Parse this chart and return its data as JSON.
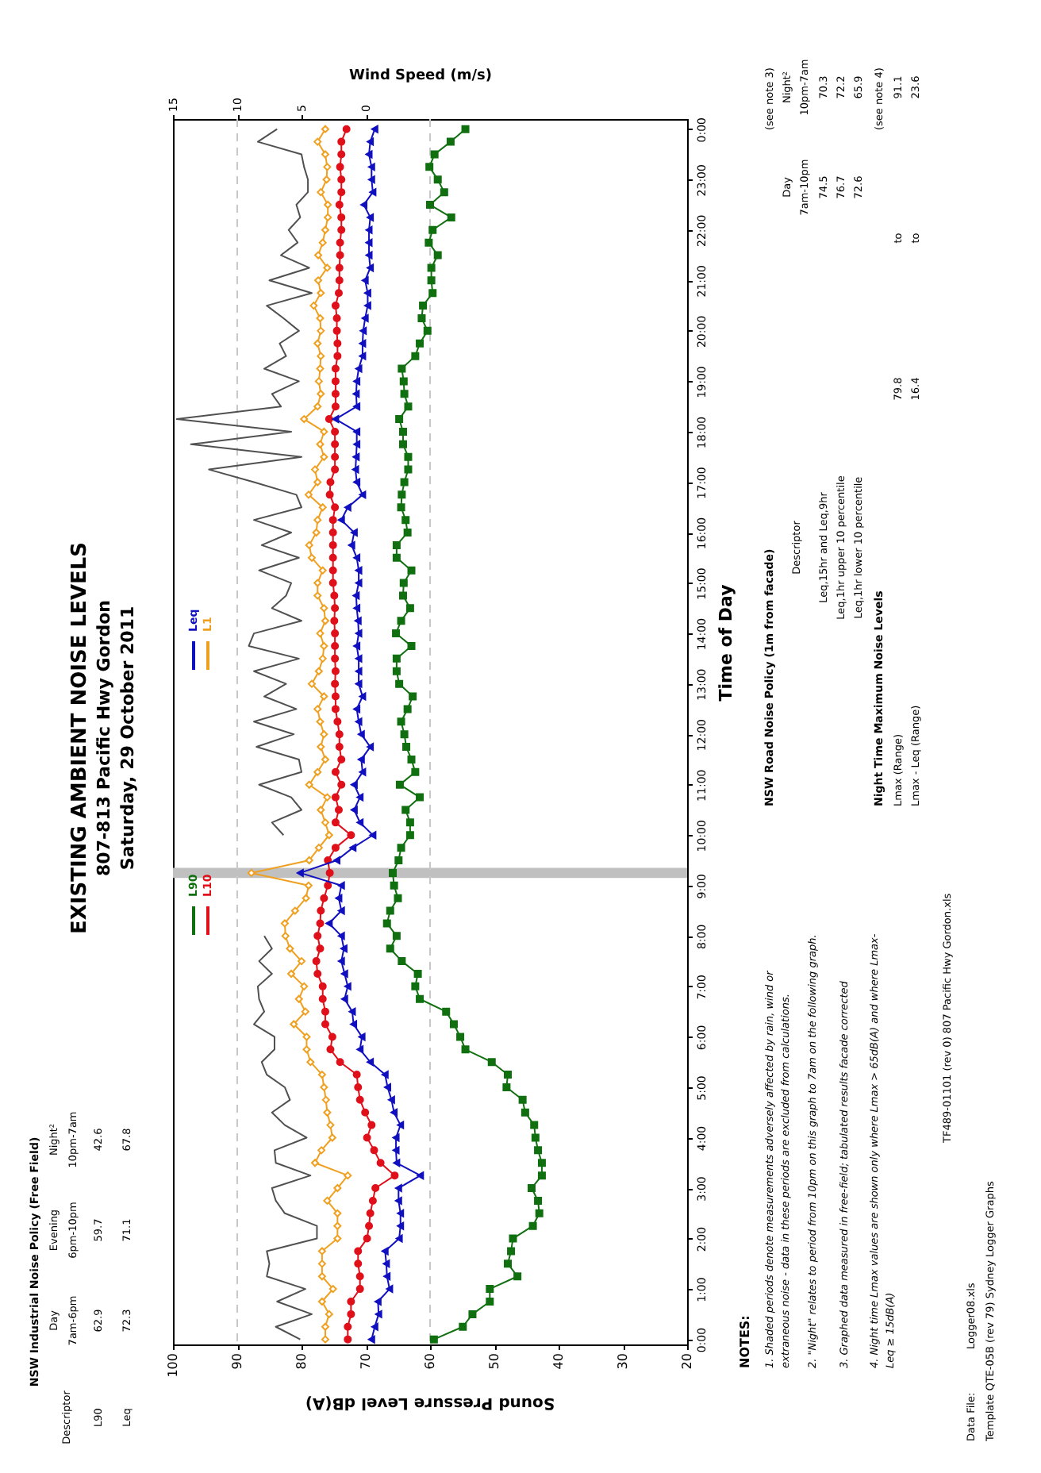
{
  "chart_data": {
    "type": "line",
    "title": "EXISTING AMBIENT NOISE LEVELS",
    "subtitle": "807-813 Pacific Hwy Gordon",
    "orientation": "horizontal",
    "ylabel": "Time of Day",
    "xlabel": "Sound Pressure Level dB(A)",
    "x2label": "Wind Speed (m/s)",
    "x": [
      0,
      0.25,
      0.5,
      0.75,
      1,
      1.25,
      1.5,
      1.75,
      2,
      2.25,
      2.5,
      2.75,
      3,
      3.25,
      3.5,
      3.75,
      4,
      4.25,
      4.5,
      4.75,
      5,
      5.25,
      5.5,
      5.75,
      6,
      6.25,
      6.5,
      6.75,
      7,
      7.25,
      7.5,
      7.75,
      8,
      8.25,
      8.5,
      8.75,
      9,
      9.25,
      9.5,
      9.75,
      10,
      10.25,
      10.5,
      10.75,
      11,
      11.25,
      11.5,
      11.75,
      12,
      12.25,
      12.5,
      12.75,
      13,
      13.25,
      13.5,
      13.75,
      14,
      14.25,
      14.5,
      14.75,
      15,
      15.25,
      15.5,
      15.75,
      16,
      16.25,
      16.5,
      16.75,
      17,
      17.25,
      17.5,
      17.75,
      18,
      18.25,
      18.5,
      18.75,
      19,
      19.25,
      19.5,
      19.75,
      20,
      20.25,
      20.5,
      20.75,
      21,
      21.25,
      21.5,
      21.75,
      22,
      22.25,
      22.5,
      22.75,
      23,
      23.25,
      23.5,
      23.75,
      24
    ],
    "ylim": [
      -0.1,
      24.2
    ],
    "yticks": [
      {
        "value": 0,
        "label": "0:00"
      },
      {
        "value": 1,
        "label": "1:00"
      },
      {
        "value": 2,
        "label": "2:00"
      },
      {
        "value": 3,
        "label": "3:00"
      },
      {
        "value": 4,
        "label": "4:00"
      },
      {
        "value": 5,
        "label": "5:00"
      },
      {
        "value": 6,
        "label": "6:00"
      },
      {
        "value": 7,
        "label": "7:00"
      },
      {
        "value": 8,
        "label": "8:00"
      },
      {
        "value": 9,
        "label": "9:00"
      },
      {
        "value": 10,
        "label": "10:00"
      },
      {
        "value": 11,
        "label": "11:00"
      },
      {
        "value": 12,
        "label": "12:00"
      },
      {
        "value": 13,
        "label": "13:00"
      },
      {
        "value": 14,
        "label": "14:00"
      },
      {
        "value": 15,
        "label": "15:00"
      },
      {
        "value": 16,
        "label": "16:00"
      },
      {
        "value": 17,
        "label": "17:00"
      },
      {
        "value": 18,
        "label": "18:00"
      },
      {
        "value": 19,
        "label": "19:00"
      },
      {
        "value": 20,
        "label": "20:00"
      },
      {
        "value": 21,
        "label": "21:00"
      },
      {
        "value": 22,
        "label": "22:00"
      },
      {
        "value": 23,
        "label": "23:00"
      },
      {
        "value": 24,
        "label": "0:00"
      }
    ],
    "xlim": [
      100,
      20
    ],
    "xticks": [
      100,
      90,
      80,
      70,
      60,
      50,
      40,
      30,
      20
    ],
    "x2lim": [
      15,
      -25
    ],
    "x2ticks": [
      15,
      10,
      5,
      0
    ],
    "series": [
      {
        "name": "L1",
        "color": "#f0a020",
        "marker": "diamond",
        "values": [
          76.3,
          76.3,
          75.7,
          76.8,
          75.1,
          76.8,
          76.8,
          76.8,
          74.4,
          74.4,
          74.4,
          76.0,
          74.4,
          72.8,
          77.9,
          76.9,
          75.2,
          75.5,
          76.0,
          76.2,
          76.5,
          76.8,
          78.6,
          79.2,
          79.2,
          81.2,
          79.4,
          80.4,
          79.6,
          81.6,
          80.0,
          81.8,
          82.5,
          82.6,
          81.0,
          79.3,
          78.9,
          87.8,
          78.8,
          77.3,
          75.7,
          76.3,
          77.0,
          76.0,
          78.8,
          77.5,
          76.3,
          77.0,
          76.5,
          77.1,
          77.5,
          76.5,
          78.4,
          77.3,
          76.7,
          76.5,
          77.1,
          76.3,
          76.5,
          77.5,
          77.5,
          76.7,
          78.4,
          78.8,
          77.7,
          77.5,
          76.7,
          78.9,
          77.5,
          77.9,
          76.5,
          77.1,
          76.5,
          79.6,
          77.5,
          77.0,
          77.3,
          77.1,
          77.0,
          77.5,
          77.0,
          77.1,
          78.1,
          77.0,
          77.4,
          76.0,
          77.4,
          76.7,
          76.3,
          75.9,
          75.9,
          77.0,
          76.1,
          76.0,
          76.3,
          77.5,
          76.3
        ]
      },
      {
        "name": "L10",
        "color": "#e0101a",
        "marker": "circle",
        "values": [
          72.8,
          72.8,
          72.3,
          72.3,
          70.9,
          70.9,
          71.2,
          71.2,
          69.8,
          69.5,
          69.3,
          68.9,
          68.5,
          65.5,
          67.7,
          68.7,
          69.8,
          69.1,
          70.1,
          70.9,
          71.2,
          71.4,
          74.0,
          75.5,
          75.2,
          76.3,
          76.3,
          76.7,
          76.7,
          77.5,
          77.7,
          77.1,
          77.5,
          77.1,
          77.0,
          76.5,
          75.9,
          75.6,
          75.9,
          74.7,
          72.3,
          74.7,
          74.2,
          74.7,
          73.8,
          74.7,
          73.8,
          74.1,
          74.1,
          74.4,
          74.7,
          74.7,
          74.8,
          74.7,
          74.8,
          74.8,
          74.8,
          74.9,
          74.8,
          74.9,
          75.1,
          75.1,
          75.1,
          75.1,
          75.1,
          75.1,
          74.8,
          75.6,
          75.5,
          74.8,
          74.8,
          74.8,
          74.8,
          75.7,
          74.7,
          74.7,
          74.7,
          74.7,
          74.4,
          74.4,
          74.5,
          74.5,
          74.7,
          74.2,
          74.1,
          74.1,
          74.0,
          74.0,
          73.8,
          73.8,
          74.1,
          73.8,
          73.8,
          74.0,
          73.8,
          73.8,
          73.0
        ]
      },
      {
        "name": "Leq",
        "color": "#1010c0",
        "marker": "triangle",
        "values": [
          69.1,
          68.6,
          68.0,
          68.1,
          66.3,
          66.7,
          66.8,
          67.0,
          64.8,
          64.6,
          64.6,
          64.9,
          64.9,
          61.5,
          65.2,
          65.3,
          65.3,
          64.6,
          65.6,
          66.0,
          66.6,
          67.0,
          69.3,
          70.9,
          70.6,
          71.9,
          72.1,
          73.3,
          72.8,
          73.3,
          73.8,
          73.4,
          73.8,
          75.7,
          73.8,
          74.2,
          73.8,
          80.2,
          74.5,
          72.0,
          68.9,
          70.9,
          71.8,
          70.9,
          71.8,
          70.5,
          70.7,
          69.3,
          70.7,
          71.1,
          71.4,
          70.5,
          71.1,
          71.1,
          71.1,
          71.4,
          71.1,
          71.2,
          71.4,
          71.5,
          71.1,
          71.1,
          71.4,
          72.2,
          71.8,
          73.8,
          72.8,
          70.5,
          71.4,
          71.6,
          71.5,
          71.4,
          71.4,
          74.7,
          71.4,
          71.5,
          71.4,
          71.1,
          70.5,
          70.5,
          70.4,
          70.1,
          69.7,
          69.7,
          70.1,
          69.3,
          69.5,
          69.5,
          69.5,
          69.3,
          70.3,
          68.9,
          69.1,
          69.1,
          69.5,
          69.3,
          68.6
        ]
      },
      {
        "name": "L90",
        "color": "#107010",
        "marker": "square",
        "values": [
          59.4,
          54.9,
          53.4,
          50.7,
          50.7,
          46.4,
          47.9,
          47.4,
          47.1,
          44.0,
          43.0,
          43.2,
          44.2,
          42.6,
          42.6,
          43.2,
          43.6,
          43.8,
          45.2,
          45.6,
          48.1,
          47.9,
          50.4,
          54.5,
          55.3,
          56.3,
          57.5,
          61.6,
          62.3,
          61.9,
          64.4,
          66.2,
          65.2,
          66.7,
          66.2,
          65.0,
          65.6,
          65.8,
          64.9,
          64.5,
          63.1,
          63.1,
          63.8,
          61.6,
          64.7,
          62.3,
          62.9,
          63.7,
          64.0,
          64.5,
          63.5,
          62.7,
          64.8,
          65.2,
          65.2,
          62.9,
          65.3,
          64.5,
          63.1,
          64.2,
          64.1,
          62.9,
          65.2,
          65.2,
          63.5,
          63.8,
          64.5,
          64.4,
          64.0,
          63.4,
          63.4,
          64.2,
          64.2,
          64.8,
          63.4,
          64.0,
          64.1,
          64.4,
          62.3,
          61.6,
          60.4,
          61.3,
          61.1,
          59.6,
          59.8,
          59.8,
          58.8,
          60.2,
          59.6,
          56.7,
          60.0,
          57.8,
          58.8,
          60.1,
          59.3,
          56.8,
          54.5
        ]
      },
      {
        "color": "#505050",
        "marker": "none",
        "axis": "x2",
        "values": [
          5.1,
          7.0,
          4.2,
          6.9,
          4.7,
          7.7,
          7.5,
          7.7,
          3.8,
          3.8,
          6.3,
          7.0,
          7.3,
          4.3,
          7.0,
          7.1,
          4.6,
          6.3,
          7.3,
          5.9,
          6.3,
          7.7,
          8.1,
          7.1,
          7.1,
          8.7,
          7.9,
          8.3,
          8.4,
          7.3,
          8.3,
          7.3,
          7.9,
          null,
          null,
          null,
          null,
          null,
          null,
          null,
          6.4,
          7.3,
          5.0,
          5.8,
          8.3,
          5.0,
          5.2,
          8.5,
          5.6,
          8.7,
          5.4,
          7.9,
          6.2,
          8.7,
          5.2,
          9.1,
          8.7,
          5.0,
          7.3,
          6.2,
          5.8,
          8.3,
          5.2,
          8.1,
          5.8,
          8.7,
          5.0,
          5.4,
          8.7,
          12.2,
          5.0,
          13.6,
          5.8,
          14.7,
          6.6,
          7.3,
          5.2,
          7.9,
          6.2,
          6.7,
          5.2,
          6.4,
          7.7,
          4.2,
          7.5,
          4.4,
          6.6,
          5.3,
          6.0,
          5.1,
          5.4,
          4.5,
          4.5,
          4.8,
          5.0,
          8.4,
          6.9
        ]
      }
    ],
    "bands": [
      {
        "axis": "y",
        "from": 9.15,
        "to": 9.35,
        "color": "#c0c0c0"
      }
    ],
    "ref_lines": [
      {
        "axis": "x",
        "value": 90,
        "color": "#c8c8c8",
        "line_style": "dashed"
      },
      {
        "axis": "x",
        "value": 60,
        "color": "#c8c8c8",
        "line_style": "dashed"
      }
    ],
    "legend": "left",
    "annotations": [
      "Saturday, 29 October 2011",
      "NOTES:",
      "1. Shaded periods denote measurements adversely affected by rain, wind or",
      "extraneous noise - data in these periods are excluded from calculations.",
      "2. \"Night\" relates to period from 10pm on this graph to 7am on the following graph.",
      "3. Graphed data measured in free-field; tabulated results facade corrected",
      "4. Night time Lmax values are shown only where Lmax > 65dB(A) and where Lmax-",
      "Leq ≥ 15dB(A)",
      "TF489-01101 (rev 0) 807 Pacific Hwy Gordon.xls",
      "Data File:",
      "Logger08.xls",
      "Template QTE-05B (rev 79) Sydney Logger Graphs",
      "NSW Road Noise Policy (1m from facade)",
      "(see note 3)",
      "Descriptor",
      "Day",
      "Night²",
      "7am-10pm",
      "10pm-7am",
      "Leq,15hr and Leq,9hr",
      "74.5",
      "70.3",
      "Leq,1hr upper 10 percentile",
      "76.7",
      "72.2",
      "Leq,1hr lower 10 percentile",
      "72.6",
      "65.9",
      "Night Time Maximum Noise Levels",
      "(see note 4)",
      "Lmax (Range)",
      "79.8",
      "to",
      "91.1",
      "Lmax - Leq (Range)",
      "16.4",
      "to",
      "23.6",
      "NSW Industrial Noise Policy (Free Field)",
      "Descriptor",
      "Day",
      "Evening",
      "Night²",
      "7am-6pm",
      "6pm-10pm",
      "10pm-7am",
      "L90",
      "62.9",
      "59.7",
      "42.6",
      "Leq",
      "72.3",
      "71.1",
      "67.8"
    ]
  }
}
